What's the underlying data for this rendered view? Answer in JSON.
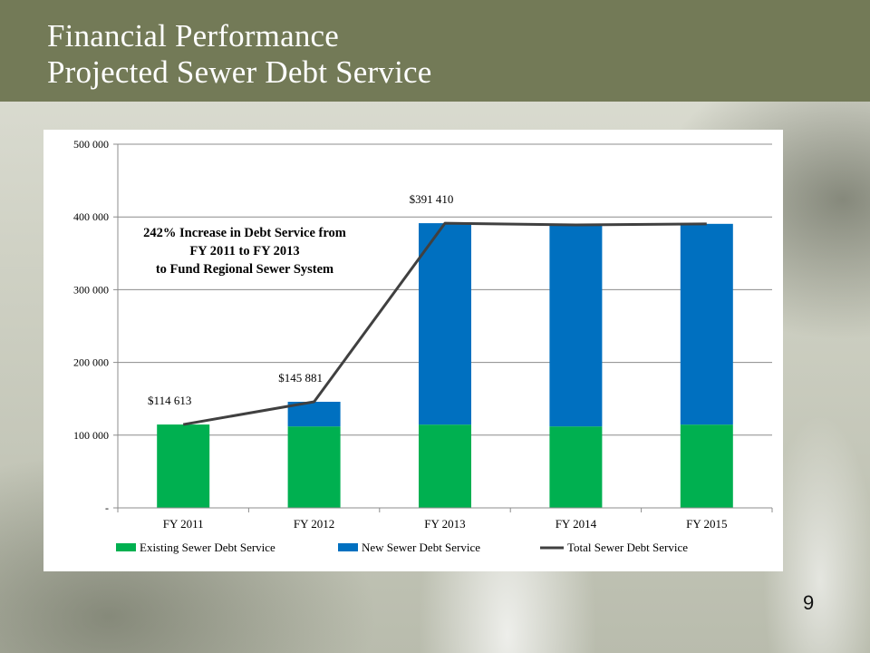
{
  "slide": {
    "title_line1": "Financial Performance",
    "title_line2": "Projected Sewer Debt Service",
    "page_number": "9"
  },
  "colors": {
    "header_bg": "#737a57",
    "existing": "#00b050",
    "new": "#0070c0",
    "total_line": "#404040"
  },
  "chart_data": {
    "type": "bar",
    "stacked": true,
    "categories": [
      "FY 2011",
      "FY 2012",
      "FY 2013",
      "FY 2014",
      "FY 2015"
    ],
    "series": [
      {
        "name": "Existing Sewer Debt Service",
        "kind": "bar",
        "color": "#00b050",
        "values": [
          114613,
          112000,
          114500,
          112000,
          114500
        ]
      },
      {
        "name": "New Sewer Debt Service",
        "kind": "bar",
        "color": "#0070c0",
        "values": [
          0,
          33881,
          276910,
          277000,
          276000
        ]
      },
      {
        "name": "Total Sewer Debt Service",
        "kind": "line",
        "color": "#404040",
        "values": [
          114613,
          145881,
          391410,
          389000,
          390500
        ]
      }
    ],
    "data_labels": [
      {
        "category": "FY 2011",
        "text": "$114 613"
      },
      {
        "category": "FY 2012",
        "text": "$145 881"
      },
      {
        "category": "FY 2013",
        "text": "$391 410"
      }
    ],
    "ylim": [
      0,
      500000
    ],
    "yticks": [
      0,
      100000,
      200000,
      300000,
      400000,
      500000
    ],
    "ytick_labels": [
      "-",
      "100 000",
      "200 000",
      "300 000",
      "400 000",
      "500 000"
    ],
    "grid": true,
    "legend": "bottom",
    "annotation": [
      "242% Increase in Debt Service from",
      "FY 2011 to FY 2013",
      "to Fund Regional Sewer System"
    ]
  }
}
